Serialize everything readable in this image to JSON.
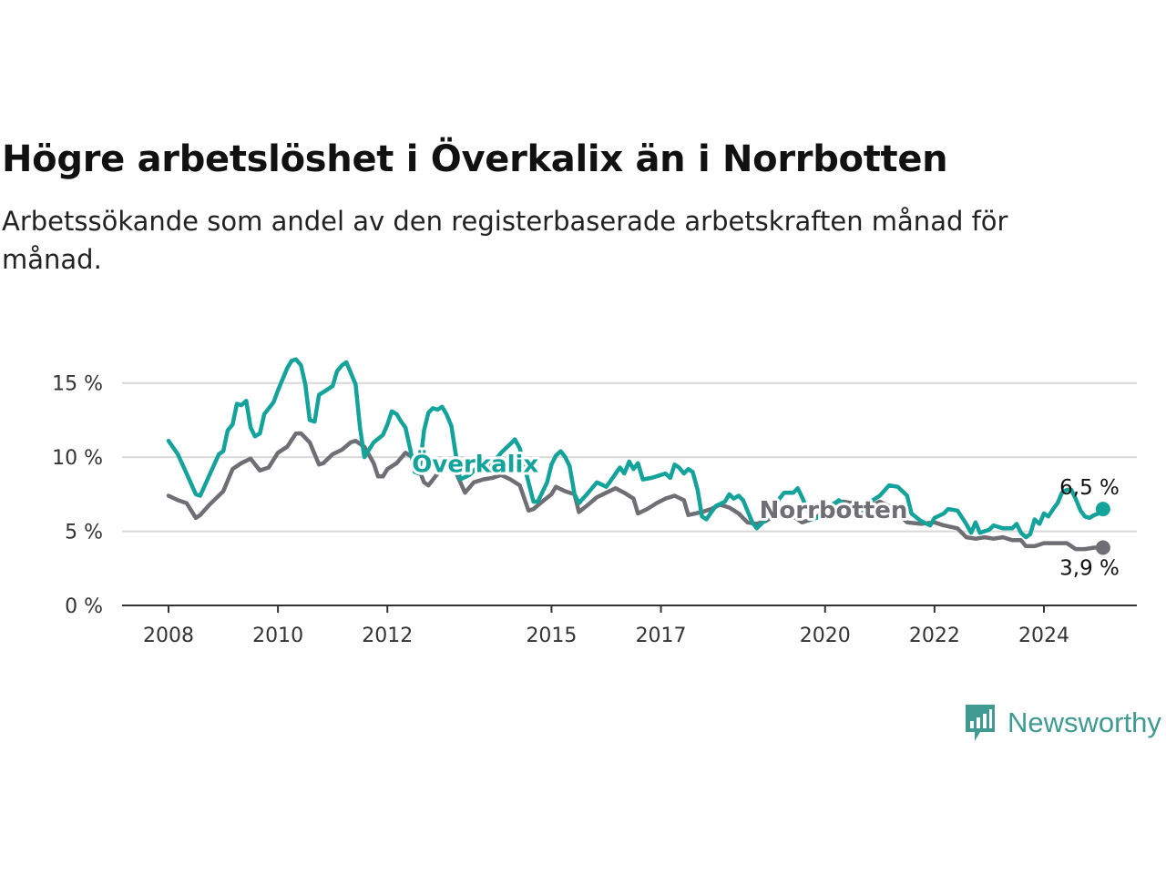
{
  "title": "Högre arbetslöshet i Överkalix än i Norrbotten",
  "subtitle": "Arbetssökande som andel av den registerbaserade arbetskraften månad för månad.",
  "brand": {
    "name": "Newsworthy",
    "icon": "bar-chart-speech-bubble-icon",
    "color": "#3f9a92"
  },
  "chart_data": {
    "type": "line",
    "x_axis": {
      "min": 2007.7,
      "max": 2025.0,
      "ticks": [
        "2008",
        "2010",
        "2012",
        "2015",
        "2017",
        "2020",
        "2022",
        "2024"
      ]
    },
    "y_axis": {
      "min": 0,
      "max": 17.5,
      "ticks": [
        0,
        5,
        10,
        15
      ],
      "tick_labels": [
        "0 %",
        "5 %",
        "10 %",
        "15 %"
      ],
      "unit": "%"
    },
    "grid": "horizontal",
    "legend": "inline labels",
    "series": [
      {
        "name": "Överkalix",
        "color": "#14a39a",
        "end_label": "6,5 %",
        "points": [
          [
            2008.0,
            11.1
          ],
          [
            2008.17,
            10.2
          ],
          [
            2008.33,
            8.9
          ],
          [
            2008.5,
            7.5
          ],
          [
            2008.58,
            7.4
          ],
          [
            2008.75,
            8.8
          ],
          [
            2008.92,
            10.2
          ],
          [
            2009.0,
            10.4
          ],
          [
            2009.08,
            11.8
          ],
          [
            2009.17,
            12.2
          ],
          [
            2009.25,
            13.6
          ],
          [
            2009.33,
            13.5
          ],
          [
            2009.42,
            13.8
          ],
          [
            2009.5,
            12.0
          ],
          [
            2009.58,
            11.4
          ],
          [
            2009.67,
            11.6
          ],
          [
            2009.75,
            12.9
          ],
          [
            2009.92,
            13.7
          ],
          [
            2010.0,
            14.5
          ],
          [
            2010.17,
            16.0
          ],
          [
            2010.25,
            16.5
          ],
          [
            2010.33,
            16.6
          ],
          [
            2010.42,
            16.2
          ],
          [
            2010.5,
            14.9
          ],
          [
            2010.58,
            12.5
          ],
          [
            2010.67,
            12.4
          ],
          [
            2010.75,
            14.2
          ],
          [
            2010.92,
            14.6
          ],
          [
            2011.0,
            14.8
          ],
          [
            2011.08,
            15.8
          ],
          [
            2011.17,
            16.2
          ],
          [
            2011.25,
            16.4
          ],
          [
            2011.33,
            15.7
          ],
          [
            2011.42,
            14.9
          ],
          [
            2011.5,
            12.0
          ],
          [
            2011.58,
            10.0
          ],
          [
            2011.75,
            11.0
          ],
          [
            2011.92,
            11.5
          ],
          [
            2012.0,
            12.2
          ],
          [
            2012.08,
            13.1
          ],
          [
            2012.17,
            12.9
          ],
          [
            2012.25,
            12.4
          ],
          [
            2012.33,
            12.0
          ],
          [
            2012.42,
            10.5
          ],
          [
            2012.5,
            9.0
          ],
          [
            2012.58,
            8.9
          ],
          [
            2012.67,
            11.8
          ],
          [
            2012.75,
            13.0
          ],
          [
            2012.83,
            13.3
          ],
          [
            2012.92,
            13.2
          ],
          [
            2013.0,
            13.4
          ],
          [
            2013.08,
            12.9
          ],
          [
            2013.17,
            12.1
          ],
          [
            2013.25,
            10.2
          ],
          [
            2013.33,
            8.5
          ],
          [
            2013.5,
            8.8
          ],
          [
            2013.67,
            9.4
          ],
          [
            2013.92,
            9.6
          ],
          [
            2014.08,
            10.3
          ],
          [
            2014.25,
            10.9
          ],
          [
            2014.33,
            11.2
          ],
          [
            2014.42,
            10.6
          ],
          [
            2014.58,
            8.3
          ],
          [
            2014.67,
            7.0
          ],
          [
            2014.75,
            7.0
          ],
          [
            2014.92,
            8.3
          ],
          [
            2015.0,
            9.5
          ],
          [
            2015.08,
            10.1
          ],
          [
            2015.17,
            10.4
          ],
          [
            2015.25,
            10.0
          ],
          [
            2015.33,
            9.4
          ],
          [
            2015.42,
            7.5
          ],
          [
            2015.5,
            6.9
          ],
          [
            2015.67,
            7.6
          ],
          [
            2015.83,
            8.3
          ],
          [
            2016.0,
            8.0
          ],
          [
            2016.08,
            8.4
          ],
          [
            2016.25,
            9.3
          ],
          [
            2016.33,
            8.9
          ],
          [
            2016.42,
            9.7
          ],
          [
            2016.5,
            9.2
          ],
          [
            2016.58,
            9.6
          ],
          [
            2016.67,
            8.5
          ],
          [
            2016.83,
            8.6
          ],
          [
            2017.0,
            8.8
          ],
          [
            2017.08,
            8.9
          ],
          [
            2017.17,
            8.6
          ],
          [
            2017.25,
            9.5
          ],
          [
            2017.33,
            9.3
          ],
          [
            2017.42,
            8.9
          ],
          [
            2017.5,
            9.2
          ],
          [
            2017.58,
            9.0
          ],
          [
            2017.67,
            7.8
          ],
          [
            2017.75,
            6.0
          ],
          [
            2017.83,
            5.8
          ],
          [
            2018.0,
            6.7
          ],
          [
            2018.17,
            7.0
          ],
          [
            2018.25,
            7.5
          ],
          [
            2018.33,
            7.2
          ],
          [
            2018.42,
            7.4
          ],
          [
            2018.5,
            7.1
          ],
          [
            2018.67,
            5.6
          ],
          [
            2018.75,
            5.2
          ],
          [
            2018.92,
            5.8
          ],
          [
            2019.08,
            6.8
          ],
          [
            2019.25,
            7.6
          ],
          [
            2019.42,
            7.6
          ],
          [
            2019.5,
            7.9
          ],
          [
            2019.58,
            7.3
          ],
          [
            2019.75,
            5.8
          ],
          [
            2019.92,
            6.0
          ],
          [
            2020.08,
            6.6
          ],
          [
            2020.25,
            7.1
          ],
          [
            2020.42,
            6.6
          ],
          [
            2020.67,
            6.2
          ],
          [
            2020.83,
            7.0
          ],
          [
            2021.0,
            7.4
          ],
          [
            2021.17,
            8.1
          ],
          [
            2021.33,
            8.0
          ],
          [
            2021.5,
            7.4
          ],
          [
            2021.58,
            6.2
          ],
          [
            2021.75,
            5.7
          ],
          [
            2021.92,
            5.4
          ],
          [
            2022.0,
            5.9
          ],
          [
            2022.17,
            6.2
          ],
          [
            2022.25,
            6.5
          ],
          [
            2022.42,
            6.4
          ],
          [
            2022.58,
            5.5
          ],
          [
            2022.67,
            4.9
          ],
          [
            2022.75,
            5.6
          ],
          [
            2022.83,
            4.9
          ],
          [
            2023.0,
            5.1
          ],
          [
            2023.08,
            5.4
          ],
          [
            2023.25,
            5.2
          ],
          [
            2023.42,
            5.2
          ],
          [
            2023.5,
            5.5
          ],
          [
            2023.58,
            4.9
          ],
          [
            2023.67,
            4.6
          ],
          [
            2023.75,
            4.8
          ],
          [
            2023.83,
            5.8
          ],
          [
            2023.92,
            5.5
          ],
          [
            2024.0,
            6.2
          ],
          [
            2024.08,
            6.0
          ],
          [
            2024.17,
            6.5
          ],
          [
            2024.25,
            6.9
          ],
          [
            2024.33,
            7.6
          ],
          [
            2024.42,
            7.8
          ],
          [
            2024.5,
            7.8
          ],
          [
            2024.58,
            7.2
          ],
          [
            2024.67,
            6.4
          ],
          [
            2024.75,
            6.0
          ],
          [
            2024.83,
            5.9
          ],
          [
            2024.92,
            6.1
          ],
          [
            2025.0,
            6.2
          ],
          [
            2025.08,
            6.5
          ]
        ]
      },
      {
        "name": "Norrbotten",
        "color": "#6e6e74",
        "end_label": "3,9 %",
        "points": [
          [
            2008.0,
            7.4
          ],
          [
            2008.17,
            7.1
          ],
          [
            2008.33,
            6.9
          ],
          [
            2008.5,
            5.9
          ],
          [
            2008.58,
            6.1
          ],
          [
            2008.75,
            6.8
          ],
          [
            2009.0,
            7.7
          ],
          [
            2009.17,
            9.2
          ],
          [
            2009.33,
            9.6
          ],
          [
            2009.5,
            9.9
          ],
          [
            2009.67,
            9.1
          ],
          [
            2009.83,
            9.3
          ],
          [
            2010.0,
            10.3
          ],
          [
            2010.17,
            10.7
          ],
          [
            2010.33,
            11.6
          ],
          [
            2010.42,
            11.6
          ],
          [
            2010.58,
            11.0
          ],
          [
            2010.75,
            9.5
          ],
          [
            2010.83,
            9.6
          ],
          [
            2011.0,
            10.2
          ],
          [
            2011.17,
            10.5
          ],
          [
            2011.33,
            11.0
          ],
          [
            2011.42,
            11.1
          ],
          [
            2011.58,
            10.7
          ],
          [
            2011.75,
            9.6
          ],
          [
            2011.83,
            8.7
          ],
          [
            2011.92,
            8.7
          ],
          [
            2012.0,
            9.2
          ],
          [
            2012.17,
            9.6
          ],
          [
            2012.33,
            10.3
          ],
          [
            2012.5,
            9.9
          ],
          [
            2012.67,
            8.3
          ],
          [
            2012.75,
            8.1
          ],
          [
            2012.92,
            8.9
          ],
          [
            2013.08,
            9.4
          ],
          [
            2013.25,
            9.0
          ],
          [
            2013.42,
            7.6
          ],
          [
            2013.58,
            8.3
          ],
          [
            2013.75,
            8.5
          ],
          [
            2013.92,
            8.6
          ],
          [
            2014.08,
            8.8
          ],
          [
            2014.25,
            8.5
          ],
          [
            2014.42,
            8.1
          ],
          [
            2014.58,
            6.4
          ],
          [
            2014.67,
            6.5
          ],
          [
            2014.83,
            7.0
          ],
          [
            2015.0,
            7.5
          ],
          [
            2015.08,
            8.0
          ],
          [
            2015.25,
            7.7
          ],
          [
            2015.42,
            7.5
          ],
          [
            2015.5,
            6.3
          ],
          [
            2015.67,
            6.8
          ],
          [
            2015.83,
            7.3
          ],
          [
            2016.0,
            7.6
          ],
          [
            2016.17,
            7.9
          ],
          [
            2016.33,
            7.6
          ],
          [
            2016.5,
            7.2
          ],
          [
            2016.58,
            6.2
          ],
          [
            2016.75,
            6.5
          ],
          [
            2016.92,
            6.9
          ],
          [
            2017.08,
            7.2
          ],
          [
            2017.25,
            7.4
          ],
          [
            2017.42,
            7.1
          ],
          [
            2017.5,
            6.1
          ],
          [
            2017.75,
            6.3
          ],
          [
            2017.92,
            6.5
          ],
          [
            2018.08,
            6.8
          ],
          [
            2018.25,
            6.6
          ],
          [
            2018.42,
            6.2
          ],
          [
            2018.58,
            5.6
          ],
          [
            2018.75,
            5.5
          ],
          [
            2018.92,
            5.7
          ],
          [
            2019.17,
            6.3
          ],
          [
            2019.42,
            6.0
          ],
          [
            2019.58,
            5.6
          ],
          [
            2019.83,
            5.9
          ],
          [
            2020.17,
            6.9
          ],
          [
            2020.33,
            7.0
          ],
          [
            2020.5,
            6.9
          ],
          [
            2020.67,
            6.8
          ],
          [
            2020.83,
            6.7
          ],
          [
            2021.0,
            7.0
          ],
          [
            2021.17,
            6.7
          ],
          [
            2021.33,
            6.2
          ],
          [
            2021.5,
            5.6
          ],
          [
            2021.75,
            5.5
          ],
          [
            2022.0,
            5.6
          ],
          [
            2022.17,
            5.4
          ],
          [
            2022.42,
            5.2
          ],
          [
            2022.58,
            4.6
          ],
          [
            2022.75,
            4.5
          ],
          [
            2022.92,
            4.6
          ],
          [
            2023.08,
            4.5
          ],
          [
            2023.25,
            4.6
          ],
          [
            2023.42,
            4.4
          ],
          [
            2023.58,
            4.4
          ],
          [
            2023.67,
            4.0
          ],
          [
            2023.83,
            4.0
          ],
          [
            2024.0,
            4.2
          ],
          [
            2024.25,
            4.2
          ],
          [
            2024.42,
            4.2
          ],
          [
            2024.5,
            4.0
          ],
          [
            2024.58,
            3.8
          ],
          [
            2024.75,
            3.8
          ],
          [
            2024.92,
            3.9
          ],
          [
            2025.08,
            3.9
          ]
        ]
      }
    ]
  }
}
